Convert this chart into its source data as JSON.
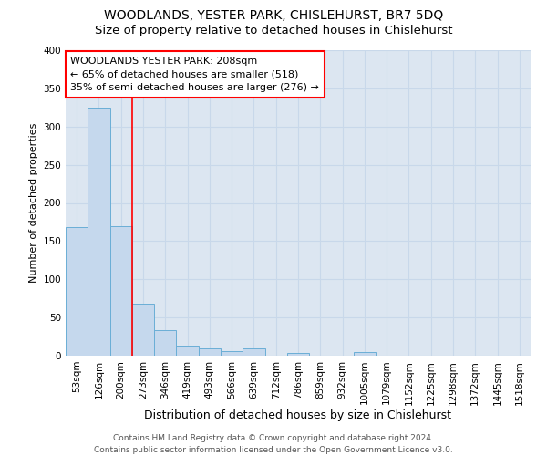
{
  "title": "WOODLANDS, YESTER PARK, CHISLEHURST, BR7 5DQ",
  "subtitle": "Size of property relative to detached houses in Chislehurst",
  "xlabel": "Distribution of detached houses by size in Chislehurst",
  "ylabel": "Number of detached properties",
  "categories": [
    "53sqm",
    "126sqm",
    "200sqm",
    "273sqm",
    "346sqm",
    "419sqm",
    "493sqm",
    "566sqm",
    "639sqm",
    "712sqm",
    "786sqm",
    "859sqm",
    "932sqm",
    "1005sqm",
    "1079sqm",
    "1152sqm",
    "1225sqm",
    "1298sqm",
    "1372sqm",
    "1445sqm",
    "1518sqm"
  ],
  "values": [
    168,
    325,
    170,
    68,
    33,
    13,
    10,
    6,
    9,
    0,
    4,
    0,
    0,
    5,
    0,
    0,
    0,
    0,
    0,
    0,
    0
  ],
  "bar_color": "#c5d8ed",
  "bar_edge_color": "#6aaed6",
  "grid_color": "#c8d8ea",
  "background_color": "#dce6f1",
  "annotation_box_text": "WOODLANDS YESTER PARK: 208sqm\n← 65% of detached houses are smaller (518)\n35% of semi-detached houses are larger (276) →",
  "vline_x": 2.5,
  "ylim": [
    0,
    400
  ],
  "yticks": [
    0,
    50,
    100,
    150,
    200,
    250,
    300,
    350,
    400
  ],
  "footnote": "Contains HM Land Registry data © Crown copyright and database right 2024.\nContains public sector information licensed under the Open Government Licence v3.0.",
  "title_fontsize": 10,
  "subtitle_fontsize": 9.5,
  "xlabel_fontsize": 9,
  "ylabel_fontsize": 8,
  "tick_fontsize": 7.5,
  "annotation_fontsize": 8,
  "footnote_fontsize": 6.5
}
